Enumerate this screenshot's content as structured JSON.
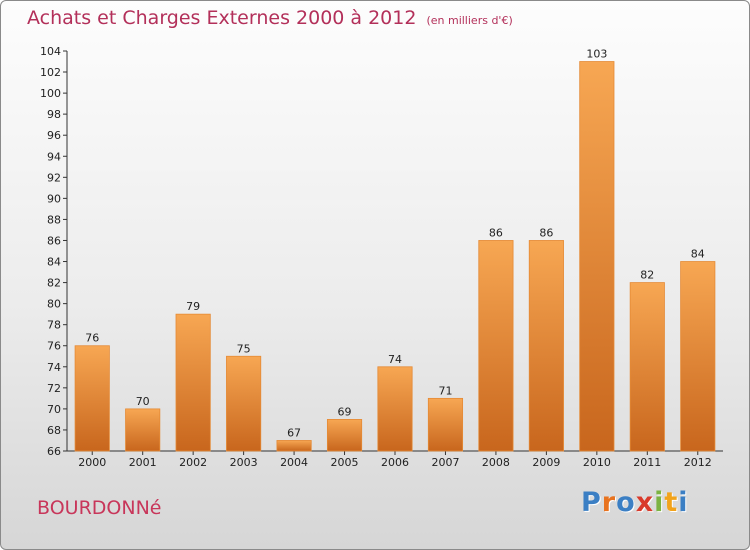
{
  "header": {
    "title": "Achats et Charges Externes 2000 à 2012",
    "unit": "(en milliers d'€)"
  },
  "commune": "BOURDONNé",
  "logo": {
    "text": "Proxiti",
    "letters": [
      "P",
      "r",
      "o",
      "x",
      "i",
      "t",
      "i"
    ],
    "colors": [
      "#3b7fc4",
      "#e8731f",
      "#3b7fc4",
      "#d93a2b",
      "#7cb342",
      "#f2a31b",
      "#3b7fc4"
    ]
  },
  "colors": {
    "bar_light": "#f7a753",
    "bar_dark": "#c8661d",
    "title": "#b3305a"
  },
  "chart_data": {
    "type": "bar",
    "title": "Achats et Charges Externes 2000 à 2012",
    "subtitle": "(en milliers d'€)",
    "categories": [
      "2000",
      "2001",
      "2002",
      "2003",
      "2004",
      "2005",
      "2006",
      "2007",
      "2008",
      "2009",
      "2010",
      "2011",
      "2012"
    ],
    "values": [
      76,
      70,
      79,
      75,
      67,
      69,
      74,
      71,
      86,
      86,
      103,
      82,
      84
    ],
    "ylim": [
      66,
      104
    ],
    "yticks": [
      66,
      68,
      70,
      72,
      74,
      76,
      78,
      80,
      82,
      84,
      86,
      88,
      90,
      92,
      94,
      96,
      98,
      100,
      102,
      104
    ],
    "grid": false,
    "legend": "none",
    "xlabel": "",
    "ylabel": ""
  }
}
